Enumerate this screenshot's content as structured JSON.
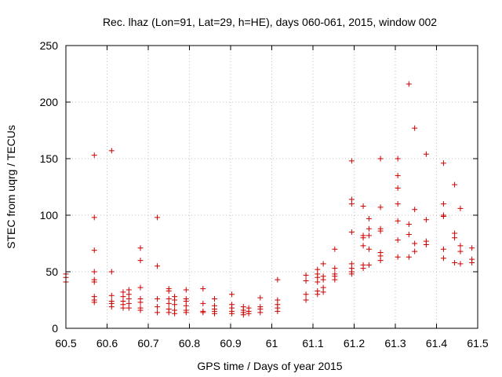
{
  "chart_data": {
    "type": "scatter",
    "title": "Rec. lhaz (Lon=91, Lat=29, h=HE), days 060-061, 2015, window 002",
    "xlabel": "GPS time / Days of year 2015",
    "ylabel": "STEC from uqrg / TECUs",
    "xlim": [
      60.5,
      61.5
    ],
    "ylim": [
      0,
      250
    ],
    "xticks": [
      60.5,
      60.6,
      60.7,
      60.8,
      60.9,
      61,
      61.1,
      61.2,
      61.3,
      61.4,
      61.5
    ],
    "xtick_labels": [
      "60.5",
      "60.6",
      "60.7",
      "60.8",
      "60.9",
      "61",
      "61.1",
      "61.2",
      "61.3",
      "61.4",
      "61.5"
    ],
    "yticks": [
      0,
      50,
      100,
      150,
      200,
      250
    ],
    "ytick_labels": [
      "0",
      "50",
      "100",
      "150",
      "200",
      "250"
    ],
    "grid": true,
    "marker": "plus",
    "color": "#cc0000",
    "points": [
      [
        60.5,
        48
      ],
      [
        60.5,
        45
      ],
      [
        60.5,
        41
      ],
      [
        60.569,
        153
      ],
      [
        60.569,
        98
      ],
      [
        60.569,
        69
      ],
      [
        60.569,
        50
      ],
      [
        60.569,
        43
      ],
      [
        60.569,
        41
      ],
      [
        60.569,
        28
      ],
      [
        60.569,
        25
      ],
      [
        60.569,
        23
      ],
      [
        60.611,
        157
      ],
      [
        60.611,
        50
      ],
      [
        60.611,
        29
      ],
      [
        60.611,
        24
      ],
      [
        60.611,
        22
      ],
      [
        60.611,
        19
      ],
      [
        60.639,
        32
      ],
      [
        60.639,
        28
      ],
      [
        60.639,
        24
      ],
      [
        60.639,
        21
      ],
      [
        60.639,
        18
      ],
      [
        60.653,
        34
      ],
      [
        60.653,
        30
      ],
      [
        60.653,
        26
      ],
      [
        60.653,
        22
      ],
      [
        60.653,
        18
      ],
      [
        60.681,
        71
      ],
      [
        60.681,
        60
      ],
      [
        60.681,
        36
      ],
      [
        60.681,
        26
      ],
      [
        60.681,
        23
      ],
      [
        60.681,
        18
      ],
      [
        60.681,
        16
      ],
      [
        60.722,
        98
      ],
      [
        60.722,
        55
      ],
      [
        60.722,
        26
      ],
      [
        60.722,
        19
      ],
      [
        60.722,
        14
      ],
      [
        60.75,
        35
      ],
      [
        60.75,
        33
      ],
      [
        60.75,
        26
      ],
      [
        60.75,
        22
      ],
      [
        60.75,
        17
      ],
      [
        60.75,
        14
      ],
      [
        60.764,
        28
      ],
      [
        60.764,
        25
      ],
      [
        60.764,
        21
      ],
      [
        60.764,
        16
      ],
      [
        60.764,
        13
      ],
      [
        60.792,
        34
      ],
      [
        60.792,
        26
      ],
      [
        60.792,
        24
      ],
      [
        60.792,
        20
      ],
      [
        60.792,
        16
      ],
      [
        60.792,
        14
      ],
      [
        60.833,
        35
      ],
      [
        60.833,
        22
      ],
      [
        60.833,
        15
      ],
      [
        60.833,
        14
      ],
      [
        60.861,
        26
      ],
      [
        60.861,
        20
      ],
      [
        60.861,
        17
      ],
      [
        60.861,
        15
      ],
      [
        60.861,
        13
      ],
      [
        60.903,
        30
      ],
      [
        60.903,
        21
      ],
      [
        60.903,
        18
      ],
      [
        60.903,
        15
      ],
      [
        60.903,
        13
      ],
      [
        60.931,
        19
      ],
      [
        60.931,
        16
      ],
      [
        60.931,
        14
      ],
      [
        60.931,
        12
      ],
      [
        60.944,
        18
      ],
      [
        60.944,
        15
      ],
      [
        60.944,
        13
      ],
      [
        60.972,
        27
      ],
      [
        60.972,
        19
      ],
      [
        60.972,
        17
      ],
      [
        60.972,
        14
      ],
      [
        61.014,
        43
      ],
      [
        61.014,
        25
      ],
      [
        61.014,
        21
      ],
      [
        61.014,
        18
      ],
      [
        61.014,
        15
      ],
      [
        61.083,
        47
      ],
      [
        61.083,
        42
      ],
      [
        61.083,
        30
      ],
      [
        61.083,
        25
      ],
      [
        61.111,
        52
      ],
      [
        61.111,
        48
      ],
      [
        61.111,
        45
      ],
      [
        61.111,
        41
      ],
      [
        61.111,
        33
      ],
      [
        61.111,
        30
      ],
      [
        61.125,
        57
      ],
      [
        61.125,
        46
      ],
      [
        61.125,
        43
      ],
      [
        61.125,
        36
      ],
      [
        61.125,
        32
      ],
      [
        61.153,
        70
      ],
      [
        61.153,
        53
      ],
      [
        61.153,
        48
      ],
      [
        61.153,
        46
      ],
      [
        61.153,
        43
      ],
      [
        61.194,
        148
      ],
      [
        61.194,
        114
      ],
      [
        61.194,
        110
      ],
      [
        61.194,
        85
      ],
      [
        61.194,
        57
      ],
      [
        61.194,
        53
      ],
      [
        61.194,
        50
      ],
      [
        61.194,
        48
      ],
      [
        61.222,
        108
      ],
      [
        61.222,
        82
      ],
      [
        61.222,
        80
      ],
      [
        61.222,
        73
      ],
      [
        61.222,
        56
      ],
      [
        61.222,
        53
      ],
      [
        61.236,
        97
      ],
      [
        61.236,
        88
      ],
      [
        61.236,
        82
      ],
      [
        61.236,
        70
      ],
      [
        61.236,
        56
      ],
      [
        61.264,
        150
      ],
      [
        61.264,
        107
      ],
      [
        61.264,
        88
      ],
      [
        61.264,
        86
      ],
      [
        61.264,
        67
      ],
      [
        61.264,
        64
      ],
      [
        61.264,
        60
      ],
      [
        61.306,
        150
      ],
      [
        61.306,
        135
      ],
      [
        61.306,
        124
      ],
      [
        61.306,
        110
      ],
      [
        61.306,
        95
      ],
      [
        61.306,
        78
      ],
      [
        61.306,
        63
      ],
      [
        61.333,
        216
      ],
      [
        61.333,
        92
      ],
      [
        61.333,
        83
      ],
      [
        61.333,
        63
      ],
      [
        61.347,
        177
      ],
      [
        61.347,
        105
      ],
      [
        61.347,
        75
      ],
      [
        61.347,
        68
      ],
      [
        61.375,
        154
      ],
      [
        61.375,
        96
      ],
      [
        61.375,
        77
      ],
      [
        61.375,
        74
      ],
      [
        61.417,
        146
      ],
      [
        61.417,
        110
      ],
      [
        61.417,
        100
      ],
      [
        61.417,
        99
      ],
      [
        61.417,
        70
      ],
      [
        61.417,
        62
      ],
      [
        61.444,
        127
      ],
      [
        61.444,
        84
      ],
      [
        61.444,
        80
      ],
      [
        61.444,
        58
      ],
      [
        61.458,
        106
      ],
      [
        61.458,
        73
      ],
      [
        61.458,
        68
      ],
      [
        61.458,
        57
      ],
      [
        61.486,
        71
      ],
      [
        61.486,
        61
      ],
      [
        61.486,
        58
      ]
    ]
  }
}
